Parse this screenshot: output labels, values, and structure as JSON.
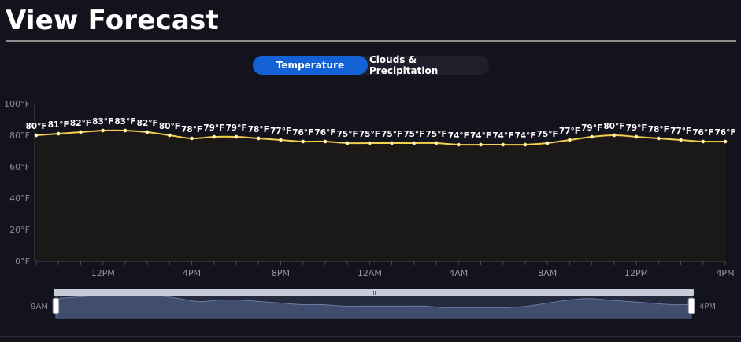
{
  "page": {
    "title": "View Forecast"
  },
  "tabs": [
    {
      "label": "Temperature",
      "active": true
    },
    {
      "label": "Clouds & Precipitation",
      "active": false
    }
  ],
  "chart_data": {
    "type": "area",
    "ylim": [
      0,
      100
    ],
    "y_ticks": [
      "0°F",
      "20°F",
      "40°F",
      "60°F",
      "80°F",
      "100°F"
    ],
    "x_tick_labels": [
      "12PM",
      "4PM",
      "8PM",
      "12AM",
      "4AM",
      "8AM",
      "12PM",
      "4PM"
    ],
    "values": [
      80,
      81,
      82,
      83,
      83,
      82,
      80,
      78,
      79,
      79,
      78,
      77,
      76,
      76,
      75,
      75,
      75,
      75,
      75,
      74,
      74,
      74,
      74,
      75,
      77,
      79,
      80,
      79,
      78,
      77,
      76,
      76
    ],
    "labels": [
      "80°F",
      "81°F",
      "82°F",
      "83°F",
      "83°F",
      "82°F",
      "80°F",
      "78°F",
      "79°F",
      "79°F",
      "78°F",
      "77°F",
      "76°F",
      "76°F",
      "75°F",
      "75°F",
      "75°F",
      "75°F",
      "75°F",
      "74°F",
      "74°F",
      "74°F",
      "74°F",
      "75°F",
      "77°F",
      "79°F",
      "80°F",
      "79°F",
      "78°F",
      "77°F",
      "76°F",
      "76°F"
    ],
    "line_color": "#f5d04a",
    "fill_color": "#1b1818"
  },
  "navigator": {
    "start_label": "9AM",
    "end_label": "4PM",
    "grip_label": "III",
    "fill_color": "#414d6e"
  }
}
